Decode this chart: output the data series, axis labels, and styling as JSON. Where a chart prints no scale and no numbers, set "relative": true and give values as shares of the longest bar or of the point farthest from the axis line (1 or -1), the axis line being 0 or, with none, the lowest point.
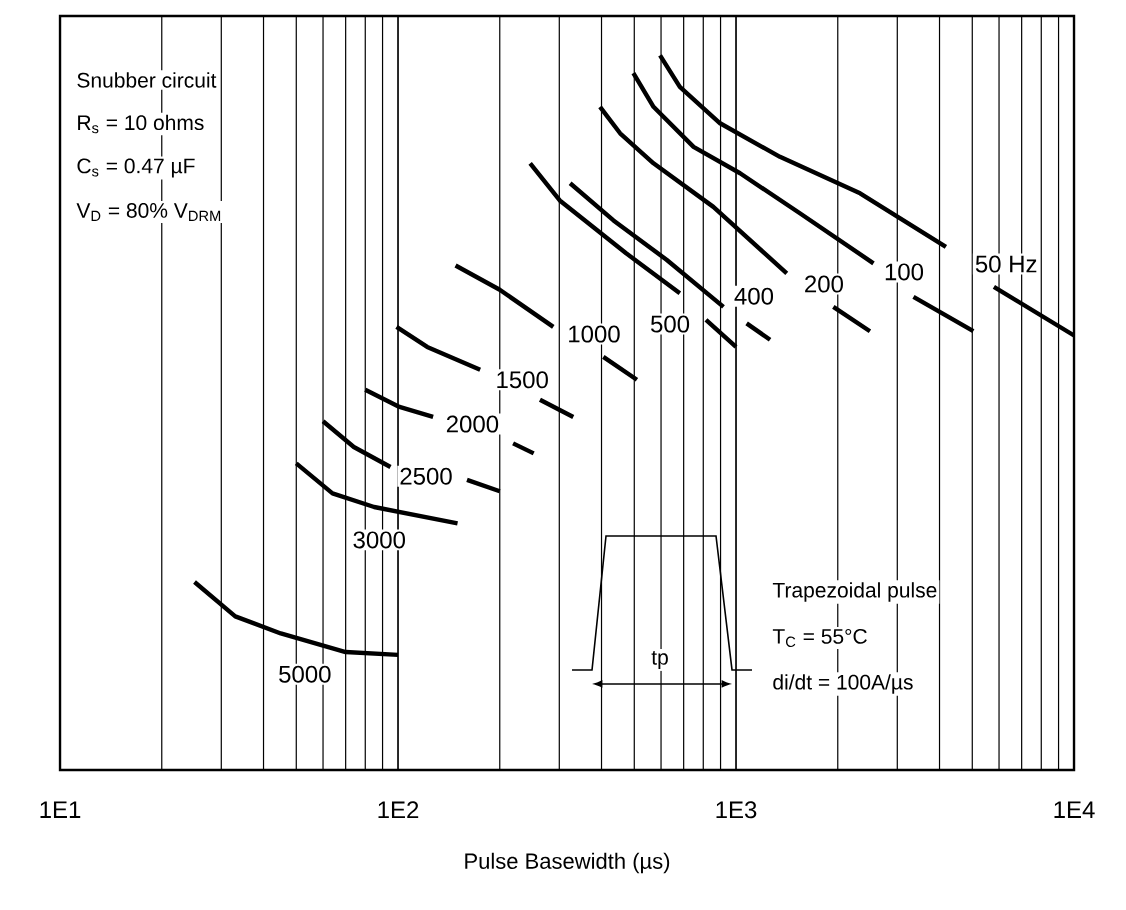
{
  "chart_data": {
    "type": "line",
    "relative": true,
    "log": "x",
    "grid": "x",
    "xlabel": "Pulse Basewidth (µs)",
    "xlim": [
      10,
      10000
    ],
    "xticks": [
      {
        "value": 10,
        "label": "1E1"
      },
      {
        "value": 100,
        "label": "1E2"
      },
      {
        "value": 1000,
        "label": "1E3"
      },
      {
        "value": 10000,
        "label": "1E4"
      }
    ],
    "series": [
      {
        "color": "#000000",
        "x": [
          596,
          682,
          897,
          1349,
          2328,
          4178,
          4920,
          5794,
          10000
        ],
        "values": [
          1.0,
          0.956,
          0.905,
          0.858,
          0.807,
          0.732,
          null,
          0.676,
          0.608
        ]
      },
      {
        "color": "#000000",
        "x": [
          497,
          570,
          749,
          1028,
          1545,
          2551,
          2897,
          3350,
          5036
        ],
        "values": [
          0.975,
          0.928,
          0.872,
          0.835,
          0.779,
          0.709,
          null,
          0.662,
          0.614
        ]
      },
      {
        "color": "#000000",
        "x": [
          396,
          454,
          570,
          857,
          1413,
          1656,
          1941,
          2490
        ],
        "values": [
          0.928,
          0.891,
          0.849,
          0.788,
          0.695,
          null,
          0.648,
          0.614
        ]
      },
      {
        "color": "#000000",
        "x": [
          323,
          434,
          623,
          918,
          986,
          1075,
          1261
        ],
        "values": [
          0.821,
          0.769,
          0.714,
          0.648,
          null,
          0.625,
          0.602
        ]
      },
      {
        "color": "#000000",
        "x": [
          246,
          301,
          473,
          682,
          731,
          815,
          1000
        ],
        "values": [
          0.849,
          0.797,
          0.723,
          0.667,
          null,
          0.63,
          0.592
        ]
      },
      {
        "color": "#000000",
        "x": [
          148,
          200,
          288,
          345,
          405,
          509
        ],
        "values": [
          0.706,
          0.672,
          0.62,
          null,
          0.578,
          0.546
        ]
      },
      {
        "color": "#000000",
        "x": [
          99,
          122,
          175,
          214,
          263,
          330
        ],
        "values": [
          0.62,
          0.592,
          0.56,
          null,
          0.518,
          0.494
        ]
      },
      {
        "color": "#000000",
        "x": [
          80,
          101,
          127,
          166,
          219,
          252
        ],
        "values": [
          0.532,
          0.508,
          0.494,
          null,
          0.457,
          0.443
        ]
      },
      {
        "color": "#000000",
        "x": [
          60,
          74,
          95,
          121,
          160,
          200
        ],
        "values": [
          0.488,
          0.452,
          0.424,
          null,
          0.406,
          0.39
        ]
      },
      {
        "color": "#000000",
        "x": [
          50,
          64,
          85,
          150
        ],
        "values": [
          0.429,
          0.387,
          0.368,
          0.345
        ]
      },
      {
        "color": "#000000",
        "x": [
          25,
          33,
          45,
          70,
          100
        ],
        "values": [
          0.263,
          0.215,
          0.191,
          0.165,
          0.161
        ]
      }
    ],
    "annotations": [
      {
        "text": "50 Hz",
        "x": 6300,
        "y": 0.708
      },
      {
        "text": "100",
        "x": 3140,
        "y": 0.697
      },
      {
        "text": "200",
        "x": 1820,
        "y": 0.68
      },
      {
        "text": "400",
        "x": 1130,
        "y": 0.663
      },
      {
        "text": "500",
        "x": 638,
        "y": 0.624
      },
      {
        "text": "1000",
        "x": 380,
        "y": 0.61
      },
      {
        "text": "1500",
        "x": 233,
        "y": 0.546
      },
      {
        "text": "2000",
        "x": 166,
        "y": 0.484
      },
      {
        "text": "2500",
        "x": 121,
        "y": 0.411
      },
      {
        "text": "3000",
        "x": 88,
        "y": 0.322
      },
      {
        "text": "5000",
        "x": 53,
        "y": 0.134
      },
      "Snubber circuit",
      "R$_{s}$ = 10 ohms",
      "C$_{s}$ = 0.47 µF",
      "V$_{D}$ = 80% V$_{DRM}$",
      "tp",
      "Trapezoidal pulse",
      "T$_{C}$ = 55°C",
      "di/dt = 100A/µs"
    ]
  }
}
